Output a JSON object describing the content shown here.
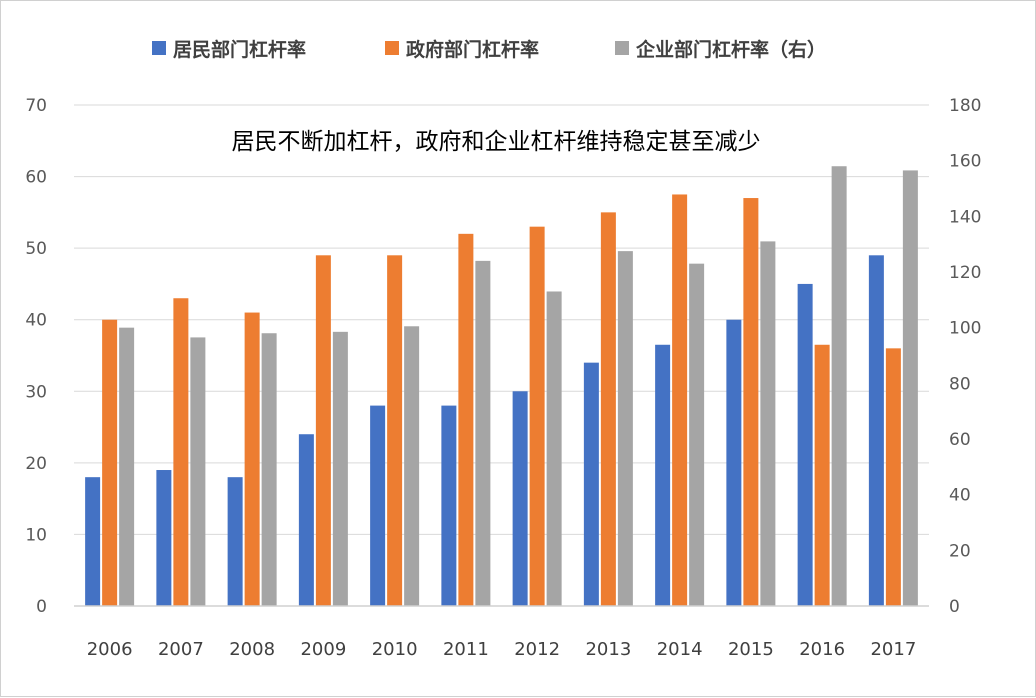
{
  "chart_data": {
    "type": "bar",
    "categories": [
      "2006",
      "2007",
      "2008",
      "2009",
      "2010",
      "2011",
      "2012",
      "2013",
      "2014",
      "2015",
      "2016",
      "2017"
    ],
    "series": [
      {
        "name": "居民部门杠杆率",
        "axis": "left",
        "color": "#4472C4",
        "values": [
          18,
          19,
          18,
          24,
          28,
          28,
          30,
          34,
          36.5,
          40,
          45,
          49
        ]
      },
      {
        "name": "政府部门杠杆率",
        "axis": "left",
        "color": "#ED7D31",
        "values": [
          40,
          43,
          41,
          49,
          49,
          52,
          53,
          55,
          57.5,
          57,
          36.5,
          36
        ]
      },
      {
        "name": "企业部门杠杆率（右）",
        "axis": "right",
        "color": "#A5A5A5",
        "values": [
          100,
          96.5,
          98,
          98.5,
          100.5,
          124,
          113,
          127.5,
          123,
          131,
          158,
          156.5
        ]
      }
    ],
    "annotation": "居民不断加杠杆，政府和企业杠杆维持稳定甚至减少",
    "y_left": {
      "min": 0,
      "max": 70,
      "ticks": [
        "0",
        "10",
        "20",
        "30",
        "40",
        "50",
        "60",
        "70"
      ]
    },
    "y_right": {
      "min": 0,
      "max": 180,
      "ticks": [
        "0",
        "20",
        "40",
        "60",
        "80",
        "100",
        "120",
        "140",
        "160",
        "180"
      ]
    },
    "legend_position": "top-center",
    "grid": true
  }
}
